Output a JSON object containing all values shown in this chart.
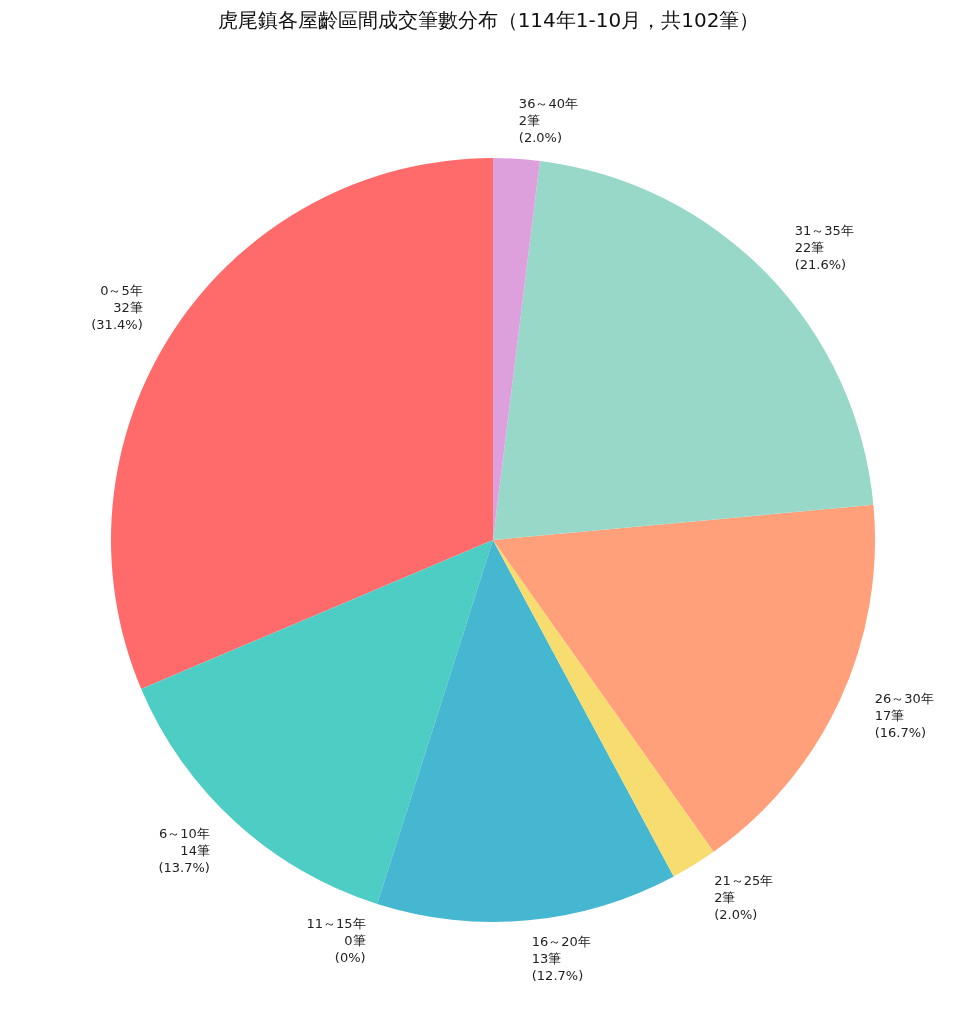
{
  "chart_data": {
    "type": "pie",
    "title": "虎尾鎮各屋齡區間成交筆數分布（114年1-10月，共102筆）",
    "categories": [
      "0～5年",
      "6～10年",
      "11～15年",
      "16～20年",
      "21～25年",
      "26～30年",
      "31～35年",
      "36～40年"
    ],
    "values": [
      32,
      14,
      0,
      13,
      2,
      17,
      22,
      2
    ],
    "value_labels": [
      "32筆\n(31.4%)",
      "14筆\n(13.7%)",
      "0筆\n(0%)",
      "13筆\n(12.7%)",
      "2筆\n(2.0%)",
      "17筆\n(16.7%)",
      "22筆\n(21.6%)",
      "2筆\n(2.0%)"
    ],
    "colors": [
      "#ff6b6b",
      "#4ecdc4",
      null,
      "#45b7d1",
      "#f7dc6f",
      "#ffa07a",
      "#98d8c8",
      "#dda0dd"
    ]
  }
}
